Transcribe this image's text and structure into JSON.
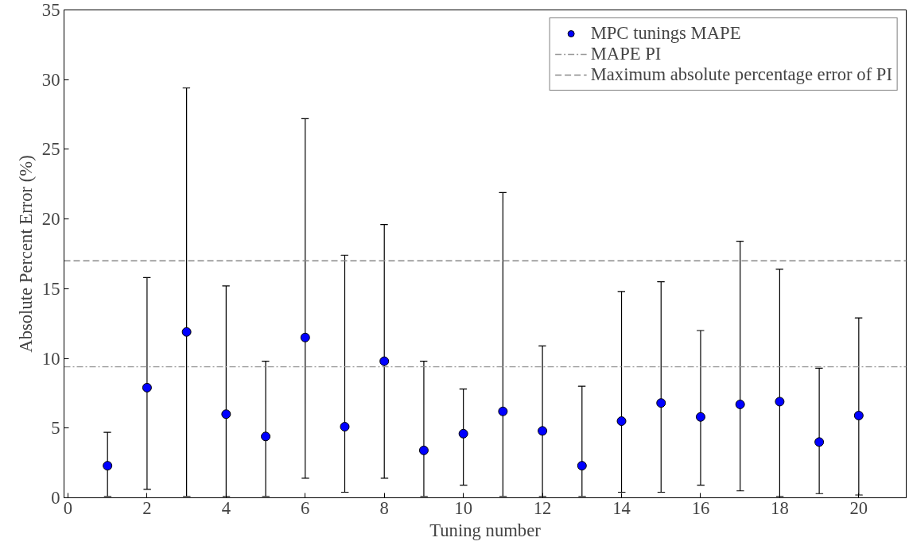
{
  "chart_data": {
    "type": "scatter",
    "xlabel": "Tuning number",
    "ylabel": "Absolute Percent Error (%)",
    "x": [
      1,
      2,
      3,
      4,
      5,
      6,
      7,
      8,
      9,
      10,
      11,
      12,
      13,
      14,
      15,
      16,
      17,
      18,
      19,
      20
    ],
    "series": [
      {
        "name": "MPC tunings MAPE",
        "color": "#0000ff",
        "values": [
          2.3,
          7.9,
          11.9,
          6.0,
          4.4,
          11.5,
          5.1,
          9.8,
          3.4,
          4.6,
          6.2,
          4.8,
          2.3,
          5.5,
          6.8,
          5.8,
          6.7,
          6.9,
          4.0,
          5.9
        ],
        "errors": [
          [
            0.1,
            4.7
          ],
          [
            0.6,
            15.8
          ],
          [
            0.1,
            29.4
          ],
          [
            0.1,
            15.2
          ],
          [
            0.1,
            9.8
          ],
          [
            1.4,
            27.2
          ],
          [
            0.4,
            17.4
          ],
          [
            1.4,
            19.6
          ],
          [
            0.1,
            9.8
          ],
          [
            0.9,
            7.8
          ],
          [
            0.1,
            21.9
          ],
          [
            0.1,
            10.9
          ],
          [
            0.1,
            8.0
          ],
          [
            0.4,
            14.8
          ],
          [
            0.4,
            15.5
          ],
          [
            0.9,
            12.0
          ],
          [
            0.5,
            18.4
          ],
          [
            0.1,
            16.4
          ],
          [
            0.3,
            9.3
          ],
          [
            0.2,
            12.9
          ]
        ]
      }
    ],
    "ref_lines": [
      {
        "axis": "y",
        "value": 9.4,
        "label": "MAPE PI",
        "color": "#999999",
        "line_style": "dashdot"
      },
      {
        "axis": "y",
        "value": 17.0,
        "label": "Maximum absolute percentage error of PI",
        "color": "#888888",
        "line_style": "dashed"
      }
    ],
    "xlim": [
      -0.1,
      21.2
    ],
    "xticks": [
      0,
      2,
      4,
      6,
      8,
      10,
      12,
      14,
      16,
      18,
      20
    ],
    "ylim": [
      0,
      35
    ],
    "yticks": [
      0,
      5,
      10,
      15,
      20,
      25,
      30,
      35
    ],
    "grid": false,
    "legend": "top right",
    "marker": "circle"
  }
}
